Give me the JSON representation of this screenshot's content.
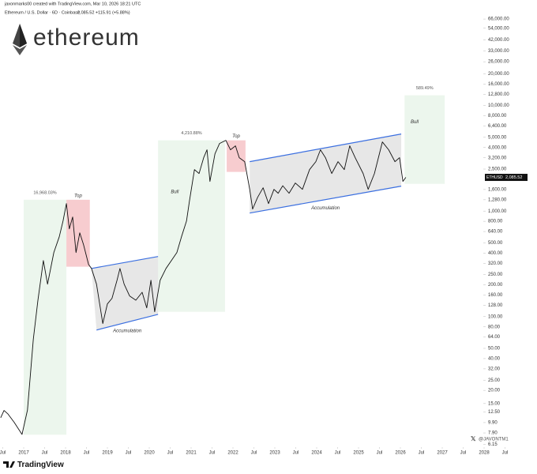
{
  "header": {
    "author_line": "jaxonmarks00 created with TradingView.com, Mar 10, 2026 18:21 UTC",
    "symbol_line": "Ethereum / U.S. Dollar · 6D · Coinbase",
    "quote": "2,085.52 +115.91 (+5.88%)",
    "logo_text": "ethereum"
  },
  "footer": {
    "brand": "TradingView",
    "watermark": "@JAVONTM1"
  },
  "chart_data": {
    "type": "line",
    "yscale": "log",
    "color": "#111111",
    "x": [
      2016.45,
      2016.53,
      2016.62,
      2016.77,
      2016.96,
      2017.09,
      2017.23,
      2017.34,
      2017.47,
      2017.57,
      2017.72,
      2017.85,
      2017.94,
      2018.02,
      2018.09,
      2018.17,
      2018.25,
      2018.34,
      2018.43,
      2018.55,
      2018.62,
      2018.74,
      2018.89,
      2019.0,
      2019.11,
      2019.23,
      2019.3,
      2019.4,
      2019.53,
      2019.68,
      2019.83,
      2019.94,
      2020.04,
      2020.13,
      2020.26,
      2020.4,
      2020.53,
      2020.66,
      2020.77,
      2020.89,
      2020.96,
      2021.08,
      2021.19,
      2021.3,
      2021.38,
      2021.45,
      2021.57,
      2021.68,
      2021.83,
      2021.94,
      2022.06,
      2022.15,
      2022.28,
      2022.4,
      2022.47,
      2022.59,
      2022.72,
      2022.85,
      2022.98,
      2023.08,
      2023.19,
      2023.34,
      2023.49,
      2023.66,
      2023.83,
      2023.98,
      2024.09,
      2024.21,
      2024.36,
      2024.51,
      2024.66,
      2024.79,
      2024.92,
      2025.11,
      2025.23,
      2025.38,
      2025.57,
      2025.72,
      2025.87,
      2025.98,
      2026.06,
      2026.13
    ],
    "values": [
      11,
      12.9,
      12,
      10,
      7.65,
      13,
      61,
      143,
      340,
      203,
      405,
      571,
      805,
      1178,
      678,
      879,
      405,
      622,
      480,
      312,
      286,
      203,
      86,
      132,
      149,
      221,
      286,
      203,
      157,
      143,
      170,
      121,
      221,
      111,
      221,
      286,
      340,
      405,
      571,
      805,
      1242,
      2472,
      2270,
      3206,
      3808,
      1909,
      3491,
      4370,
      4680,
      3808,
      4150,
      3206,
      2940,
      1607,
      1045,
      1352,
      1663,
      1178,
      1607,
      1475,
      1738,
      1475,
      1845,
      1607,
      2472,
      2940,
      3808,
      3206,
      2270,
      2940,
      2472,
      4150,
      3206,
      2270,
      1607,
      2270,
      4519,
      3808,
      2940,
      3206,
      1909,
      2085.52
    ],
    "xlim": [
      2016.434,
      2029.264
    ],
    "ylim": [
      6,
      100000
    ],
    "xticks": [
      {
        "value": 2016.5,
        "label": "Jul"
      },
      2017,
      {
        "value": 2017.5,
        "label": "Jul"
      },
      2018,
      {
        "value": 2018.5,
        "label": "Jul"
      },
      2019,
      {
        "value": 2019.5,
        "label": "Jul"
      },
      2020,
      {
        "value": 2020.5,
        "label": "Jul"
      },
      2021,
      {
        "value": 2021.5,
        "label": "Jul"
      },
      2022,
      {
        "value": 2022.5,
        "label": "Jul"
      },
      2023,
      {
        "value": 2023.5,
        "label": "Jul"
      },
      2024,
      {
        "value": 2024.5,
        "label": "Jul"
      },
      2025,
      {
        "value": 2025.5,
        "label": "Jul"
      },
      2026,
      {
        "value": 2026.5,
        "label": "Jul"
      },
      2027,
      {
        "value": 2027.5,
        "label": "Jul"
      },
      2028,
      {
        "value": 2028.5,
        "label": "Jul"
      }
    ],
    "yticks": [
      {
        "value": 66000,
        "label": "66,000.00"
      },
      {
        "value": 54000,
        "label": "54,000.00"
      },
      {
        "value": 42000,
        "label": "42,000.00"
      },
      {
        "value": 33000,
        "label": "33,000.00"
      },
      {
        "value": 26000,
        "label": "26,000.00"
      },
      {
        "value": 20000,
        "label": "20,000.00"
      },
      {
        "value": 16000,
        "label": "16,000.00"
      },
      {
        "value": 12800,
        "label": "12,800.00"
      },
      {
        "value": 10000,
        "label": "10,000.00"
      },
      {
        "value": 8000,
        "label": "8,000.00"
      },
      {
        "value": 6400,
        "label": "6,400.00"
      },
      {
        "value": 5000,
        "label": "5,000.00"
      },
      {
        "value": 4000,
        "label": "4,000.00"
      },
      {
        "value": 3200,
        "label": "3,200.00"
      },
      {
        "value": 2500,
        "label": "2,500.00"
      },
      {
        "value": 1600,
        "label": "1,600.00"
      },
      {
        "value": 1280,
        "label": "1,280.00"
      },
      {
        "value": 1000,
        "label": "1,000.00"
      },
      {
        "value": 800,
        "label": "800.00"
      },
      {
        "value": 640,
        "label": "640.00"
      },
      {
        "value": 500,
        "label": "500.00"
      },
      {
        "value": 400,
        "label": "400.00"
      },
      {
        "value": 320,
        "label": "320.00"
      },
      {
        "value": 250,
        "label": "250.00"
      },
      {
        "value": 200,
        "label": "200.00"
      },
      {
        "value": 160,
        "label": "160.00"
      },
      {
        "value": 128,
        "label": "128.00"
      },
      {
        "value": 100,
        "label": "100.00"
      },
      {
        "value": 80,
        "label": "80.00"
      },
      {
        "value": 64,
        "label": "64.00"
      },
      {
        "value": 50,
        "label": "50.00"
      },
      {
        "value": 40,
        "label": "40.00"
      },
      {
        "value": 32,
        "label": "32.00"
      },
      {
        "value": 25,
        "label": "25.00"
      },
      {
        "value": 20,
        "label": "20.00"
      },
      {
        "value": 15,
        "label": "15.00"
      },
      {
        "value": 12.5,
        "label": "12.50"
      },
      {
        "value": 9.9,
        "label": "9.90"
      },
      {
        "value": 7.9,
        "label": "7.90"
      },
      {
        "value": 6.15,
        "label": "6.15"
      }
    ],
    "last_price": {
      "symbol": "ETHUSD",
      "value": 2085.52,
      "label": "2,085.52"
    },
    "bull_ranges": [
      {
        "x": [
          2017.0,
          2018.02
        ],
        "y": [
          7.6,
          1280
        ],
        "change": "16,968.03%"
      },
      {
        "x": [
          2020.21,
          2021.81
        ],
        "y": [
          111,
          4680
        ],
        "change": "4,210.88%",
        "label": "Bull"
      },
      {
        "x": [
          2026.1,
          2027.06
        ],
        "y": [
          1812,
          12500
        ],
        "change": "589.49%",
        "label": "Bull"
      }
    ],
    "top_ranges": [
      {
        "x": [
          2018.02,
          2018.58
        ],
        "y": [
          297,
          1280
        ],
        "label": "Top"
      },
      {
        "x": [
          2021.85,
          2022.3
        ],
        "y": [
          2350,
          4680
        ],
        "label": "Top"
      }
    ],
    "channels": [
      {
        "upper": {
          "x": [
            2018.62,
            2020.21
          ],
          "y": [
            286,
            371
          ]
        },
        "lower": {
          "x": [
            2018.74,
            2020.21
          ],
          "y": [
            74.6,
            105
          ]
        },
        "label": "Accumulation"
      },
      {
        "upper": {
          "x": [
            2022.4,
            2026.02
          ],
          "y": [
            2940,
            5375
          ]
        },
        "lower": {
          "x": [
            2022.4,
            2026.02
          ],
          "y": [
            958,
            1722
          ]
        },
        "label": "Accumulation"
      }
    ]
  }
}
